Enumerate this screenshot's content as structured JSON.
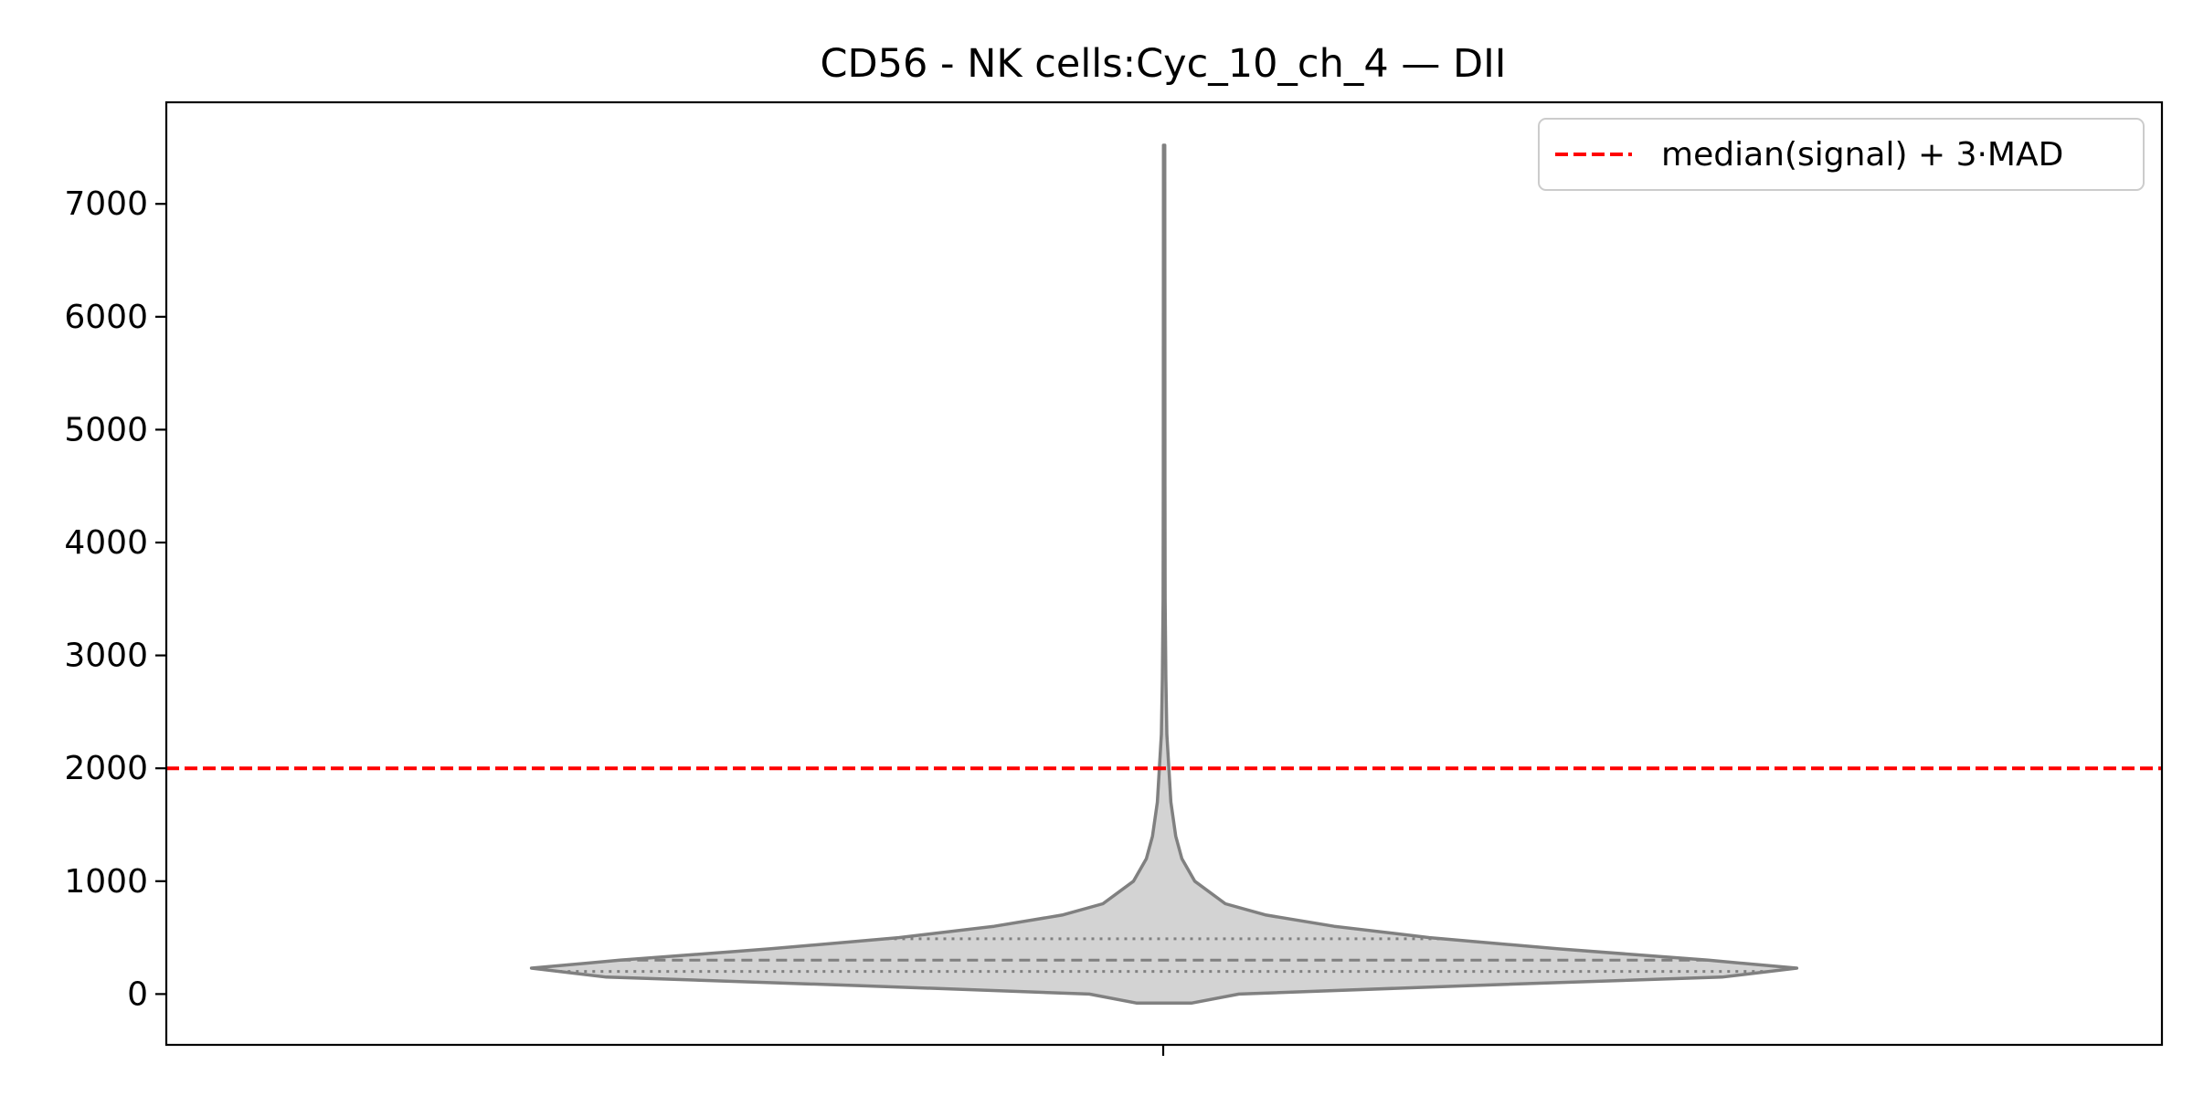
{
  "chart_data": {
    "type": "violin",
    "title": "CD56 - NK cells:Cyc_10_ch_4 — DII",
    "xlabel": "",
    "ylabel": "",
    "ylim": [
      -450,
      7900
    ],
    "yticks": [
      0,
      1000,
      2000,
      3000,
      4000,
      5000,
      6000,
      7000
    ],
    "grid": false,
    "legend_position": "top-right",
    "violin": {
      "fill_color": "#d3d3d3",
      "edge_color": "#808080",
      "min": -80,
      "max": 7520,
      "quartiles": {
        "q1": 200,
        "median": 300,
        "q3": 490
      },
      "density_profile": [
        {
          "y": -80,
          "half_width": 0.04
        },
        {
          "y": 0,
          "half_width": 0.11
        },
        {
          "y": 75,
          "half_width": 0.45
        },
        {
          "y": 150,
          "half_width": 0.82
        },
        {
          "y": 230,
          "half_width": 0.93
        },
        {
          "y": 300,
          "half_width": 0.8
        },
        {
          "y": 400,
          "half_width": 0.58
        },
        {
          "y": 500,
          "half_width": 0.39
        },
        {
          "y": 600,
          "half_width": 0.25
        },
        {
          "y": 700,
          "half_width": 0.15
        },
        {
          "y": 800,
          "half_width": 0.09
        },
        {
          "y": 1000,
          "half_width": 0.045
        },
        {
          "y": 1200,
          "half_width": 0.026
        },
        {
          "y": 1400,
          "half_width": 0.017
        },
        {
          "y": 1700,
          "half_width": 0.01
        },
        {
          "y": 2000,
          "half_width": 0.007
        },
        {
          "y": 2300,
          "half_width": 0.004
        },
        {
          "y": 2800,
          "half_width": 0.0025
        },
        {
          "y": 3500,
          "half_width": 0.0015
        },
        {
          "y": 4500,
          "half_width": 0.0012
        },
        {
          "y": 7520,
          "half_width": 0.001
        }
      ]
    },
    "threshold": {
      "value": 2000,
      "label": "median(signal) + 3·MAD",
      "color": "#ff0000",
      "style": "dashed"
    }
  }
}
